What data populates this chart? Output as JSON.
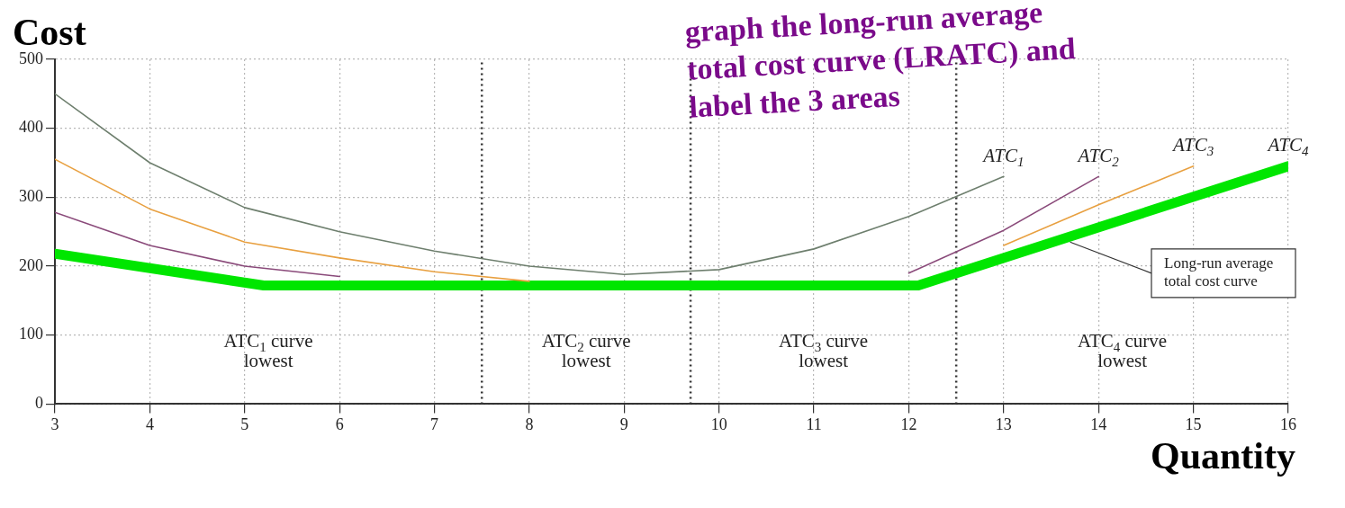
{
  "chart_data": {
    "type": "line",
    "xlabel": "Quantity",
    "ylabel": "Cost",
    "x": [
      3,
      4,
      5,
      6,
      7,
      8,
      9,
      10,
      11,
      12,
      13,
      14,
      15
    ],
    "series": [
      {
        "name": "ATC$_{1}$",
        "color": "#6e7f6e",
        "values": [
          450,
          350,
          285,
          250,
          222,
          200,
          188,
          195,
          225,
          272,
          330,
          null,
          null
        ]
      },
      {
        "name": "ATC$_{2}$",
        "color": "#8a4a7a",
        "values": [
          278,
          230,
          200,
          185,
          null,
          null,
          null,
          null,
          null,
          190,
          252,
          330,
          null
        ]
      },
      {
        "name": "ATC$_{3}$",
        "color": "#e8a040",
        "values": [
          355,
          283,
          235,
          212,
          192,
          178,
          null,
          null,
          null,
          null,
          230,
          289,
          345
        ]
      },
      {
        "name": "ATC$_{4}$",
        "color": "#00e600",
        "x": [
          3,
          5.2,
          12.1,
          16
        ],
        "values": [
          218,
          172,
          172,
          345
        ]
      }
    ],
    "xlim": [
      3,
      16
    ],
    "xticks": [
      3,
      4,
      5,
      6,
      7,
      8,
      9,
      10,
      11,
      12,
      13,
      14,
      15,
      16
    ],
    "ylim": [
      0,
      500
    ],
    "yticks": [
      0,
      100,
      200,
      300,
      400,
      500
    ],
    "grid": true,
    "legend": false,
    "marker": "none",
    "line_style": "solid",
    "ref_lines": [
      {
        "axis": "x",
        "value": 7.5,
        "line_style": "dotted",
        "color": "#333333"
      },
      {
        "axis": "x",
        "value": 9.7,
        "line_style": "dotted",
        "color": "#333333"
      },
      {
        "axis": "x",
        "value": 12.5,
        "line_style": "dotted",
        "color": "#333333"
      }
    ],
    "annotations": [
      "graph the long-run average total cost curve (LRATC) and label the 3 areas",
      "ATC$_{1}$ curve lowest",
      "ATC$_{2}$ curve lowest",
      "ATC$_{3}$ curve lowest",
      "ATC$_{4}$ curve lowest",
      {
        "text": "Long-run average total cost curve",
        "x": 13.7,
        "y": 235
      }
    ]
  }
}
